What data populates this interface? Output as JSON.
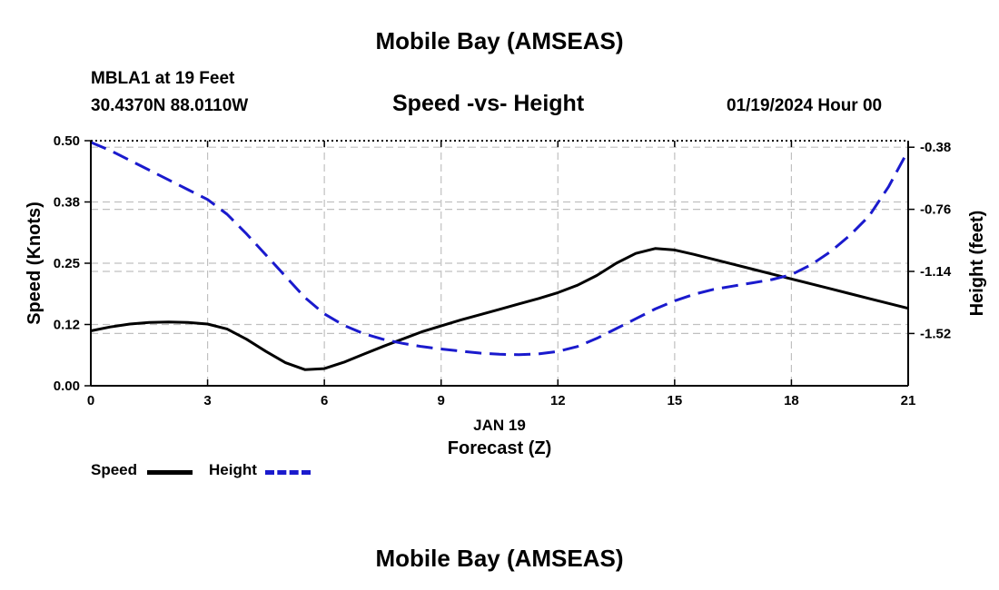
{
  "header": {
    "title": "Mobile Bay (AMSEAS)",
    "station": "MBLA1 at 19 Feet",
    "coordinates": "30.4370N  88.0110W",
    "datetime": "01/19/2024 Hour 00"
  },
  "footer": {
    "title": "Mobile Bay (AMSEAS)"
  },
  "chart_data": {
    "type": "line",
    "title": "Speed -vs- Height",
    "xlabel": "Forecast (Z)",
    "xdate_label": "JAN 19",
    "ylabel": "Speed (Knots)",
    "y2label": "Height (feet)",
    "xlim": [
      0,
      21
    ],
    "ylim": [
      0,
      0.5
    ],
    "y2lim": [
      -1.84,
      -0.34
    ],
    "x_ticks": [
      0,
      3,
      6,
      9,
      12,
      15,
      18,
      21
    ],
    "x_tick_labels": [
      "0",
      "3",
      "6",
      "9",
      "12",
      "15",
      "18",
      "21"
    ],
    "y_ticks": [
      0,
      0.125,
      0.25,
      0.375,
      0.5
    ],
    "y_tick_labels": [
      "0.00",
      "0.12",
      "0.25",
      "0.38",
      "0.50"
    ],
    "y2_ticks": [
      -1.52,
      -1.14,
      -0.76,
      -0.38
    ],
    "y2_tick_labels": [
      "-1.52",
      "-1.14",
      "-0.76",
      "-0.38"
    ],
    "grid": true,
    "series": [
      {
        "name": "Speed",
        "axis": "left",
        "color": "#000000",
        "style": "solid",
        "x": [
          0,
          0.5,
          1,
          1.5,
          2,
          2.5,
          3,
          3.5,
          4,
          4.5,
          5,
          5.5,
          6,
          6.5,
          7,
          7.5,
          8,
          8.5,
          9,
          9.5,
          10,
          10.5,
          11,
          11.5,
          12,
          12.5,
          13,
          13.5,
          14,
          14.5,
          15,
          15.5,
          16,
          16.5,
          17,
          17.5,
          18,
          18.5,
          19,
          19.5,
          20,
          20.5,
          21
        ],
        "values": [
          0.112,
          0.12,
          0.126,
          0.129,
          0.13,
          0.129,
          0.126,
          0.116,
          0.095,
          0.07,
          0.047,
          0.033,
          0.035,
          0.048,
          0.064,
          0.08,
          0.095,
          0.11,
          0.122,
          0.134,
          0.145,
          0.156,
          0.167,
          0.178,
          0.19,
          0.205,
          0.225,
          0.25,
          0.27,
          0.28,
          0.277,
          0.268,
          0.258,
          0.248,
          0.238,
          0.228,
          0.218,
          0.208,
          0.198,
          0.188,
          0.178,
          0.168,
          0.158
        ]
      },
      {
        "name": "Height",
        "axis": "right",
        "color": "#1a1acd",
        "style": "dashed",
        "x": [
          0,
          0.5,
          1,
          1.5,
          2,
          2.5,
          3,
          3.5,
          4,
          4.5,
          5,
          5.5,
          6,
          6.5,
          7,
          7.5,
          8,
          8.5,
          9,
          9.5,
          10,
          10.5,
          11,
          11.5,
          12,
          12.5,
          13,
          13.5,
          14,
          14.5,
          15,
          15.5,
          16,
          16.5,
          17,
          17.5,
          18,
          18.5,
          19,
          19.5,
          20,
          20.5,
          21
        ],
        "values": [
          -0.35,
          -0.4,
          -0.46,
          -0.52,
          -0.58,
          -0.64,
          -0.7,
          -0.79,
          -0.91,
          -1.04,
          -1.17,
          -1.3,
          -1.4,
          -1.47,
          -1.52,
          -1.555,
          -1.58,
          -1.6,
          -1.615,
          -1.628,
          -1.64,
          -1.647,
          -1.65,
          -1.645,
          -1.63,
          -1.6,
          -1.55,
          -1.49,
          -1.43,
          -1.37,
          -1.32,
          -1.28,
          -1.25,
          -1.23,
          -1.21,
          -1.19,
          -1.16,
          -1.1,
          -1.02,
          -0.92,
          -0.8,
          -0.62,
          -0.4
        ]
      }
    ],
    "legend": [
      {
        "label": "Speed",
        "color": "#000000",
        "style": "solid"
      },
      {
        "label": "Height",
        "color": "#1a1acd",
        "style": "dashed"
      }
    ]
  }
}
